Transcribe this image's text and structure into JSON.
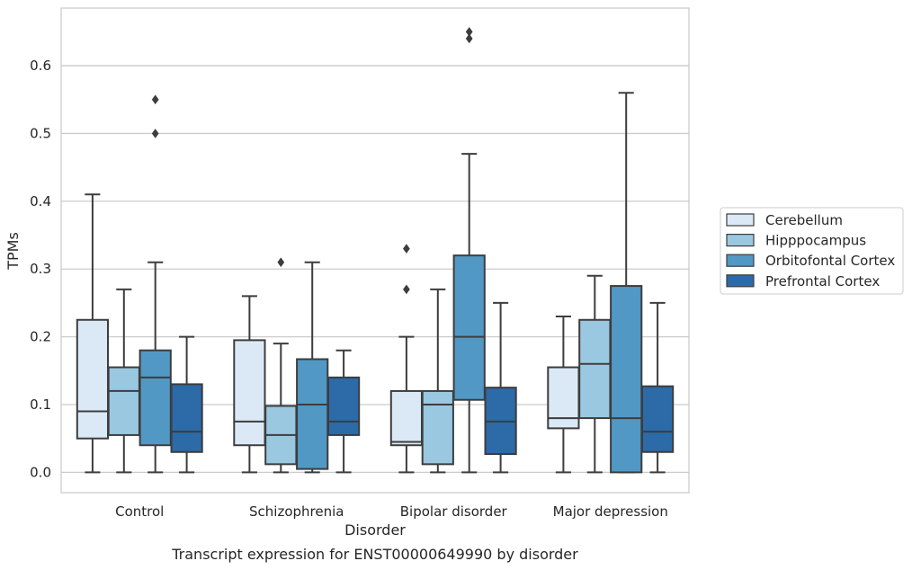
{
  "chart_data": {
    "type": "box",
    "title": "",
    "caption": "Transcript expression for ENST00000649990 by disorder",
    "xlabel": "Disorder",
    "ylabel": "TPMs",
    "ylim": [
      -0.03,
      0.685
    ],
    "yticks": [
      0.0,
      0.1,
      0.2,
      0.3,
      0.4,
      0.5,
      0.6
    ],
    "ytick_labels": [
      "0.0",
      "0.1",
      "0.2",
      "0.3",
      "0.4",
      "0.5",
      "0.6"
    ],
    "grid": "horizontal",
    "legend_position": "right",
    "categories": [
      "Control",
      "Schizophrenia",
      "Bipolar disorder",
      "Major depression"
    ],
    "series": [
      {
        "name": "Cerebellum",
        "color": "#dbe9f6",
        "boxes": [
          {
            "whislo": 0.0,
            "q1": 0.05,
            "med": 0.09,
            "q3": 0.225,
            "whishi": 0.41,
            "fliers": []
          },
          {
            "whislo": 0.0,
            "q1": 0.04,
            "med": 0.075,
            "q3": 0.195,
            "whishi": 0.26,
            "fliers": []
          },
          {
            "whislo": 0.0,
            "q1": 0.04,
            "med": 0.045,
            "q3": 0.12,
            "whishi": 0.2,
            "fliers": [
              0.27,
              0.33
            ]
          },
          {
            "whislo": 0.0,
            "q1": 0.065,
            "med": 0.08,
            "q3": 0.155,
            "whishi": 0.23,
            "fliers": []
          }
        ]
      },
      {
        "name": "Hipppocampus",
        "color": "#9ac8e0",
        "boxes": [
          {
            "whislo": 0.0,
            "q1": 0.055,
            "med": 0.12,
            "q3": 0.155,
            "whishi": 0.27,
            "fliers": []
          },
          {
            "whislo": 0.0,
            "q1": 0.012,
            "med": 0.055,
            "q3": 0.098,
            "whishi": 0.19,
            "fliers": [
              0.31
            ]
          },
          {
            "whislo": 0.0,
            "q1": 0.012,
            "med": 0.1,
            "q3": 0.12,
            "whishi": 0.27,
            "fliers": []
          },
          {
            "whislo": 0.0,
            "q1": 0.08,
            "med": 0.16,
            "q3": 0.225,
            "whishi": 0.29,
            "fliers": []
          }
        ]
      },
      {
        "name": "Orbitofontal Cortex",
        "color": "#5198c5",
        "boxes": [
          {
            "whislo": 0.0,
            "q1": 0.04,
            "med": 0.14,
            "q3": 0.18,
            "whishi": 0.31,
            "fliers": [
              0.5,
              0.55
            ]
          },
          {
            "whislo": 0.0,
            "q1": 0.005,
            "med": 0.1,
            "q3": 0.167,
            "whishi": 0.31,
            "fliers": []
          },
          {
            "whislo": 0.0,
            "q1": 0.107,
            "med": 0.2,
            "q3": 0.32,
            "whishi": 0.47,
            "fliers": [
              0.64,
              0.65
            ]
          },
          {
            "whislo": 0.0,
            "q1": 0.0,
            "med": 0.08,
            "q3": 0.275,
            "whishi": 0.56,
            "fliers": []
          }
        ]
      },
      {
        "name": "Prefrontal Cortex",
        "color": "#2c6aa8",
        "boxes": [
          {
            "whislo": 0.0,
            "q1": 0.03,
            "med": 0.06,
            "q3": 0.13,
            "whishi": 0.2,
            "fliers": []
          },
          {
            "whislo": 0.0,
            "q1": 0.055,
            "med": 0.075,
            "q3": 0.14,
            "whishi": 0.18,
            "fliers": []
          },
          {
            "whislo": 0.0,
            "q1": 0.027,
            "med": 0.075,
            "q3": 0.125,
            "whishi": 0.25,
            "fliers": []
          },
          {
            "whislo": 0.0,
            "q1": 0.03,
            "med": 0.06,
            "q3": 0.127,
            "whishi": 0.25,
            "fliers": []
          }
        ]
      }
    ]
  }
}
